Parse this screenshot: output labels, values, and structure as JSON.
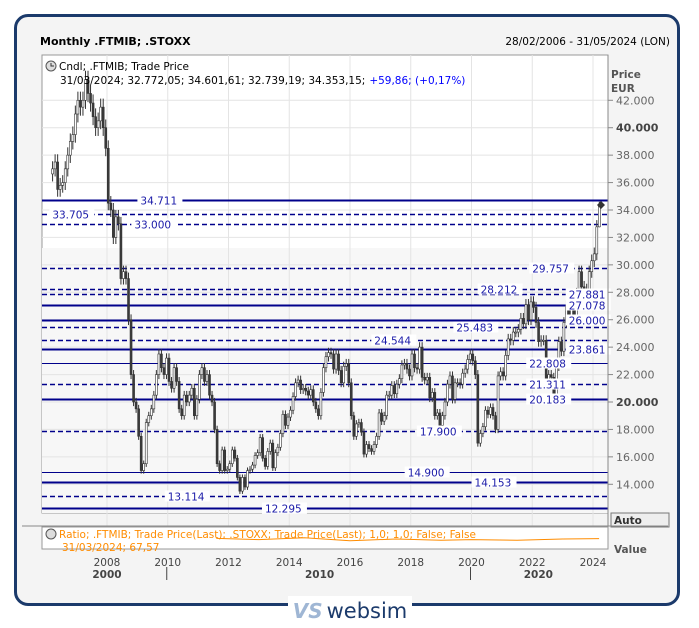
{
  "header": {
    "title": "Monthly .FTMIB; .STOXX",
    "date_range": "28/02/2006 - 31/05/2024 (LON)"
  },
  "legend": {
    "main_series": "Cndl; .FTMIB; Trade Price",
    "ohlc_prefix": "31/03/2024; 32.772,05; 34.601,61; 32.739,19; 34.353,15;",
    "change": "+59,86; (+0,17%)",
    "ratio_series": "Ratio; .FTMIB; Trade Price(Last); .STOXX; Trade Price(Last);  1,0; 1,0; False; False",
    "ratio_last": "31/03/2024; 67,57"
  },
  "axis": {
    "price_label": "Price",
    "currency_label": "EUR",
    "auto_button": "Auto",
    "value_label": "Value"
  },
  "logo": {
    "mark": "VS",
    "text": "websim"
  },
  "colors": {
    "candle": "#3a3a3a",
    "level": "#00008b",
    "ratio": "#ff8c00",
    "frame": "#1b3a6b",
    "change": "#0000ff"
  },
  "chart_data": {
    "type": "candlestick",
    "title": "Monthly .FTMIB; .STOXX",
    "ylabel": "Price EUR",
    "ylim": [
      12000,
      43500
    ],
    "y_ticks": [
      42000,
      40000,
      38000,
      36000,
      34000,
      32000,
      30000,
      28000,
      26000,
      24000,
      22000,
      20000,
      18000,
      16000,
      14000
    ],
    "y_ticks_labels": [
      "42.000",
      "40.000",
      "38.000",
      "36.000",
      "34.000",
      "32.000",
      "30.000",
      "28.000",
      "26.000",
      "24.000",
      "22.000",
      "20.000",
      "18.000",
      "16.000",
      "14.000"
    ],
    "y_bold_ticks": [
      40000,
      20000
    ],
    "x_ticks": [
      2008,
      2010,
      2012,
      2014,
      2016,
      2018,
      2020,
      2022,
      2024
    ],
    "x_ticks_labels": [
      "2008",
      "2010",
      "2012",
      "2014",
      "2016",
      "2018",
      "2020",
      "2022",
      "2024"
    ],
    "decades": [
      {
        "label": "2000",
        "at": 2008
      },
      {
        "label": "2010",
        "at": 2015
      },
      {
        "label": "2020",
        "at": 2022.2
      }
    ],
    "decade_separators": [
      2010,
      2020
    ],
    "grid": true,
    "start": "2006-03",
    "monthly_close": [
      37000,
      37500,
      35500,
      35800,
      36000,
      37000,
      38000,
      39000,
      39500,
      41000,
      42000,
      41500,
      42000,
      43500,
      42500,
      41800,
      40800,
      40000,
      40500,
      41500,
      40000,
      38500,
      34500,
      34000,
      32000,
      33500,
      33000,
      29000,
      29500,
      29000,
      26000,
      22000,
      20000,
      19500,
      17500,
      15000,
      15500,
      18500,
      19000,
      19500,
      20500,
      22000,
      23500,
      22500,
      22000,
      23200,
      21500,
      21000,
      22500,
      21500,
      19500,
      19000,
      20500,
      20000,
      20500,
      21000,
      19000,
      20200,
      22000,
      22500,
      21500,
      22000,
      20500,
      20000,
      18000,
      15500,
      15000,
      16500,
      15000,
      15100,
      15500,
      16500,
      15900,
      14500,
      13500,
      14500,
      13800,
      15000,
      15100,
      15400,
      16100,
      16300,
      17400,
      15900,
      15300,
      16400,
      17000,
      15200,
      16300,
      16700,
      17700,
      19100,
      18300,
      18900,
      19400,
      20400,
      21400,
      21600,
      20900,
      21000,
      20800,
      20500,
      20900,
      20000,
      19500,
      19000,
      20700,
      22500,
      23300,
      23600,
      23500,
      22400,
      23500,
      22300,
      21400,
      22600,
      22800,
      21400,
      19000,
      17500,
      18400,
      18500,
      17800,
      16200,
      16900,
      16600,
      16400,
      16900,
      17500,
      19200,
      18600,
      19000,
      20500,
      20500,
      21200,
      20600,
      21300,
      21700,
      22700,
      22800,
      22400,
      21900,
      23500,
      22500,
      22400,
      24000,
      21800,
      21600,
      21800,
      20300,
      20700,
      19000,
      19200,
      18300,
      19000,
      20000,
      21300,
      21900,
      20200,
      21400,
      21400,
      21300,
      22100,
      22400,
      23100,
      23500,
      23000,
      22000,
      17000,
      17700,
      18200,
      19400,
      19100,
      19600,
      19000,
      18000,
      21900,
      22200,
      21900,
      23400,
      24600,
      24500,
      25100,
      25100,
      25300,
      26100,
      25700,
      27100,
      26000,
      27300,
      26900,
      25800,
      24400,
      24500,
      24500,
      21300,
      22000,
      21800,
      20400,
      22600,
      24400,
      23700,
      25800,
      27000,
      26300,
      27100,
      26300,
      27900,
      29500,
      28400,
      28200,
      27700,
      29500,
      30300,
      30800,
      32772,
      34353
    ],
    "last_bar": {
      "date": "31/03/2024",
      "open": 32772.05,
      "high": 34601.61,
      "low": 32739.19,
      "close": 34353.15
    },
    "levels": [
      {
        "value": 34711,
        "label": "34.711",
        "style": "solid",
        "label_at": 2009.1
      },
      {
        "value": 33705,
        "label": "33.705",
        "style": "dashed",
        "label_at": 2006.2
      },
      {
        "value": 33000,
        "label": "33.000",
        "style": "dashed",
        "label_at": 2008.9
      },
      {
        "value": 29757,
        "label": "29.757",
        "style": "dashed",
        "label_at": 2022.0
      },
      {
        "value": 28212,
        "label": "28.212",
        "style": "dashed",
        "label_at": 2020.3
      },
      {
        "value": 27881,
        "label": "27.881",
        "style": "dashed",
        "label_at": 2023.2
      },
      {
        "value": 27078,
        "label": "27.078",
        "style": "solid",
        "label_at": 2023.2
      },
      {
        "value": 26000,
        "label": "26.000",
        "style": "solid",
        "label_at": 2023.2
      },
      {
        "value": 25483,
        "label": "25.483",
        "style": "dashed",
        "label_at": 2019.5
      },
      {
        "value": 24544,
        "label": "24.544",
        "style": "dashed",
        "label_at": 2016.8
      },
      {
        "value": 23861,
        "label": "23.861",
        "style": "solid",
        "label_at": 2023.2
      },
      {
        "value": 22808,
        "label": "22.808",
        "style": "thin",
        "label_at": 2021.9
      },
      {
        "value": 21311,
        "label": "21.311",
        "style": "dashed",
        "label_at": 2021.9
      },
      {
        "value": 20183,
        "label": "20.183",
        "style": "solid",
        "label_at": 2021.9
      },
      {
        "value": 17900,
        "label": "17.900",
        "style": "dashed",
        "label_at": 2018.3
      },
      {
        "value": 14900,
        "label": "14.900",
        "style": "thin",
        "label_at": 2017.9
      },
      {
        "value": 14153,
        "label": "14.153",
        "style": "solid",
        "label_at": 2020.1
      },
      {
        "value": 13114,
        "label": "13.114",
        "style": "dashed",
        "label_at": 2010.0
      },
      {
        "value": 12295,
        "label": "12.295",
        "style": "solid",
        "label_at": 2013.2
      }
    ],
    "ratio_series": {
      "x": [
        2011.6,
        2013,
        2014.5,
        2016,
        2017.5,
        2019,
        2020,
        2021.5,
        2023,
        2024.2
      ],
      "y": [
        67.6,
        67.4,
        67.7,
        67.2,
        67.5,
        67.3,
        67.4,
        67.3,
        67.5,
        67.57
      ]
    }
  }
}
